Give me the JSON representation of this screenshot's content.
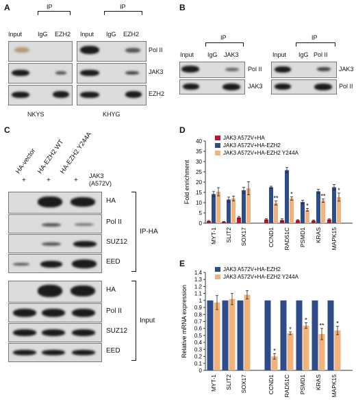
{
  "panelA": {
    "label": "A",
    "ip": "IP",
    "lanes": [
      "Input",
      "IgG",
      "EZH2"
    ],
    "rows": [
      "Pol II",
      "JAK3",
      "EZH2"
    ],
    "cells": [
      "NKYS",
      "KHYG"
    ]
  },
  "panelB": {
    "label": "B",
    "left": {
      "ip": "IP",
      "lanes": [
        "Input",
        "IgG",
        "JAK3"
      ],
      "rows": [
        "Pol II",
        "JAK3"
      ]
    },
    "right": {
      "ip": "IP",
      "lanes": [
        "Input",
        "IgG",
        "Pol II"
      ],
      "rows": [
        "JAK3",
        "Pol II"
      ]
    }
  },
  "panelC": {
    "label": "C",
    "lanes": [
      "HA-vector",
      "HA-EZH2 WT",
      "HA-EZH2 Y244A"
    ],
    "plus": [
      "+",
      "+",
      "+"
    ],
    "treatment": "JAK3",
    "treatment2": "(A572V)",
    "ip_rows": [
      "HA",
      "Pol II",
      "SUZ12",
      "EED"
    ],
    "input_rows": [
      "HA",
      "Pol II",
      "SUZ12",
      "EED"
    ],
    "ip_group": "IP-HA",
    "input_group": "Input"
  },
  "panelD": {
    "label": "D"
  },
  "panelE": {
    "label": "E"
  },
  "chart_data": [
    {
      "type": "bar",
      "panel": "D",
      "ylabel": "Fold enrichment",
      "ylim": [
        0,
        40
      ],
      "yticks": [
        0,
        5,
        10,
        15,
        20,
        25,
        30,
        35,
        40
      ],
      "categories": [
        "MYT-1",
        "SLIT2",
        "SOX17",
        "CCND1",
        "RAD51C",
        "PSMD1",
        "KRAS",
        "MAPK15"
      ],
      "series": [
        {
          "name": "JAK3 A572V+HA",
          "color": "#c0142c",
          "values": [
            1.0,
            0.6,
            2.8,
            1.8,
            1.5,
            1.4,
            1.2,
            1.8
          ],
          "errors": [
            0.3,
            0.2,
            0.5,
            0.4,
            0.6,
            0.3,
            0.3,
            0.3
          ]
        },
        {
          "name": "JAK3 A572V+HA-EZH2",
          "color": "#2e4b8a",
          "values": [
            14.2,
            11.5,
            16.0,
            17.5,
            25.8,
            10.3,
            15.5,
            17.5
          ],
          "errors": [
            1.2,
            1.2,
            1.5,
            0.5,
            1.3,
            0.9,
            1.0,
            1.3
          ]
        },
        {
          "name": "JAK3 A572V+HA-EZH2 Y244A",
          "color": "#f2b27b",
          "values": [
            15.3,
            12.0,
            17.0,
            9.8,
            12.0,
            6.5,
            11.0,
            12.7
          ],
          "errors": [
            2.0,
            1.2,
            3.2,
            1.0,
            0.8,
            0.7,
            0.8,
            2.0
          ]
        }
      ],
      "annotations": [
        "",
        "",
        "",
        "**",
        "*",
        "*",
        "**",
        "*"
      ]
    },
    {
      "type": "bar",
      "panel": "E",
      "ylabel": "Relative mRNA expression",
      "ylim": [
        0,
        1.4
      ],
      "yticks": [
        0,
        0.1,
        0.2,
        0.3,
        0.4,
        0.5,
        0.6,
        0.7,
        0.8,
        0.9,
        1.0,
        1.1,
        1.2,
        1.3,
        1.4
      ],
      "ytick_labels": [
        "0",
        "0.1",
        "0.2",
        "0.3",
        "0.4",
        "0.5",
        "0.6",
        "0.7",
        "0.8",
        "0.9",
        "1",
        "1.1",
        "1.2",
        "1.3",
        "1.4"
      ],
      "categories": [
        "MYT-1",
        "SLIT2",
        "SOX17",
        "CCND1",
        "RAD51C",
        "PSMD1",
        "KRAS",
        "MAPK15"
      ],
      "series": [
        {
          "name": "JAK3 A572V+HA-EZH2",
          "color": "#2e4b8a",
          "values": [
            1,
            1,
            1,
            1,
            1,
            1,
            1,
            1
          ],
          "errors": [
            0,
            0,
            0,
            0,
            0,
            0,
            0,
            0
          ]
        },
        {
          "name": "JAK3 A572V+HA-EZH2 Y244A",
          "color": "#f2b27b",
          "values": [
            0.97,
            1.02,
            1.08,
            0.2,
            0.53,
            0.64,
            0.52,
            0.57
          ],
          "errors": [
            0.1,
            0.08,
            0.06,
            0.04,
            0.02,
            0.04,
            0.08,
            0.06
          ]
        }
      ],
      "annotations": [
        "",
        "",
        "",
        "*",
        "*",
        "*",
        "**",
        "*"
      ]
    }
  ]
}
